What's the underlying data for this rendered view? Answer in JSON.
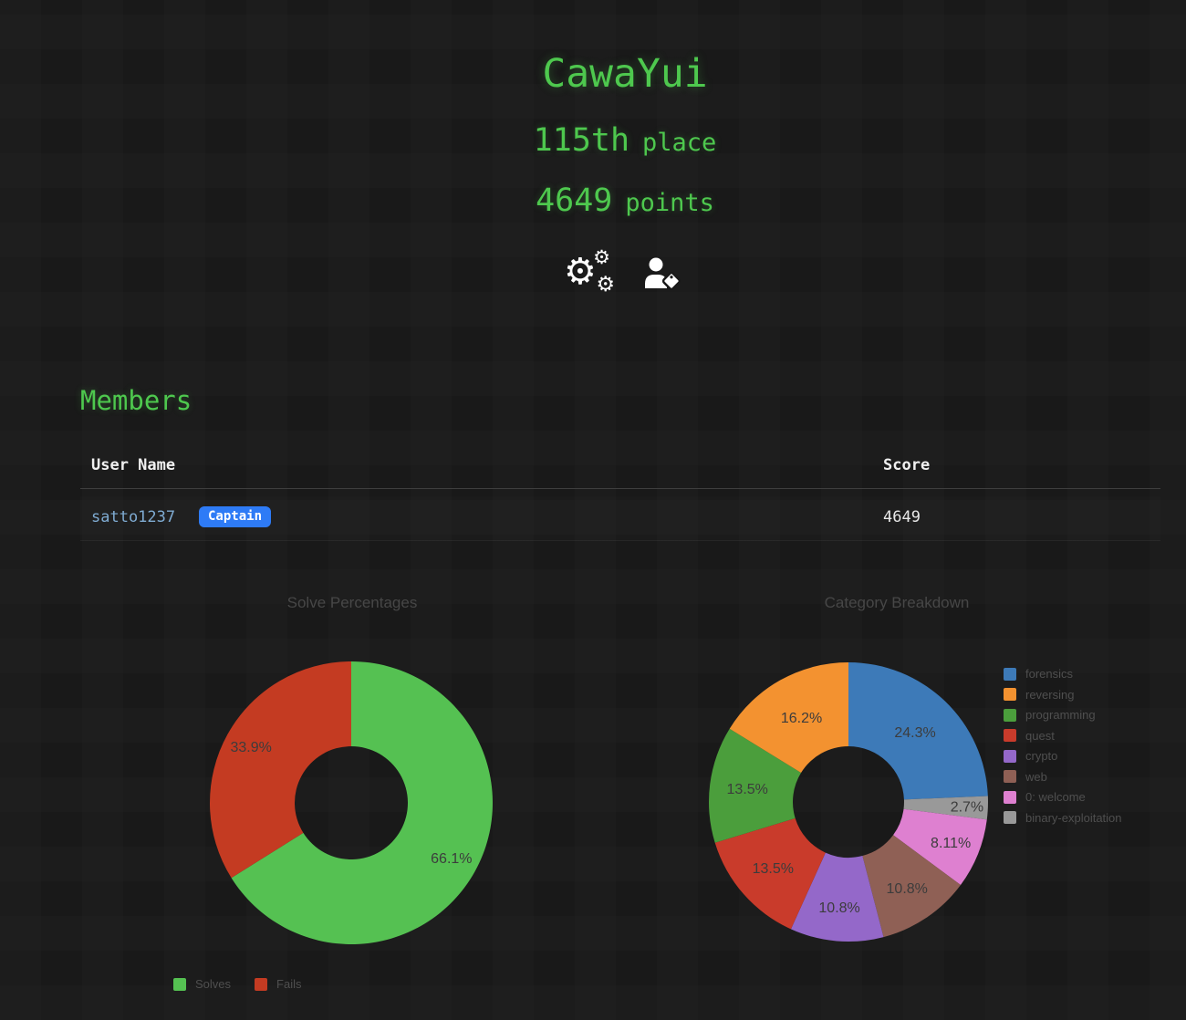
{
  "header": {
    "team_name": "CawaYui",
    "place_value": "115th",
    "place_label": "place",
    "points_value": "4649",
    "points_label": "points"
  },
  "icons": {
    "settings": "gears-icon",
    "captain": "user-tag-icon",
    "gear_glyph": "⚙"
  },
  "members": {
    "heading": "Members",
    "columns": [
      "User Name",
      "Score"
    ],
    "rows": [
      {
        "username": "satto1237",
        "badge": "Captain",
        "score": "4649"
      }
    ]
  },
  "colors": {
    "accent_green": "#4ec84e",
    "badge_blue": "#2e7bf6",
    "link_blue": "#7fabd2",
    "background": "#191919"
  },
  "chart_data": [
    {
      "type": "pie",
      "donut": true,
      "title": "Solve Percentages",
      "legend_position": "bottom",
      "draw_order": [
        0,
        1
      ],
      "slices": [
        {
          "label": "Solves",
          "value": 66.1,
          "pct_label": "66.1%",
          "color": "#55c152",
          "lr": 0.81
        },
        {
          "label": "Fails",
          "value": 33.9,
          "pct_label": "33.9%",
          "color": "#c43b22",
          "lr": 0.81
        }
      ]
    },
    {
      "type": "pie",
      "donut": true,
      "title": "Category Breakdown",
      "legend_position": "right",
      "draw_order": [
        0,
        7,
        6,
        5,
        4,
        3,
        2,
        1
      ],
      "slices": [
        {
          "label": "forensics",
          "value": 24.3,
          "pct_label": "24.3%",
          "color": "#3d7ab8",
          "lr": 0.69
        },
        {
          "label": "reversing",
          "value": 16.2,
          "pct_label": "16.2%",
          "color": "#f39230",
          "lr": 0.69
        },
        {
          "label": "programming",
          "value": 13.5,
          "pct_label": "13.5%",
          "color": "#4b9e3c",
          "lr": 0.73
        },
        {
          "label": "quest",
          "value": 13.5,
          "pct_label": "13.5%",
          "color": "#c93b2b",
          "lr": 0.72
        },
        {
          "label": "crypto",
          "value": 10.8,
          "pct_label": "10.8%",
          "color": "#9468c9",
          "lr": 0.76
        },
        {
          "label": "web",
          "value": 10.8,
          "pct_label": "10.8%",
          "color": "#8f6055",
          "lr": 0.75
        },
        {
          "label": "0: welcome",
          "value": 8.11,
          "pct_label": "8.11%",
          "color": "#de80d0",
          "lr": 0.79
        },
        {
          "label": "binary-exploitation",
          "value": 2.7,
          "pct_label": "2.7%",
          "color": "#999999",
          "lr": 0.85
        }
      ]
    }
  ]
}
